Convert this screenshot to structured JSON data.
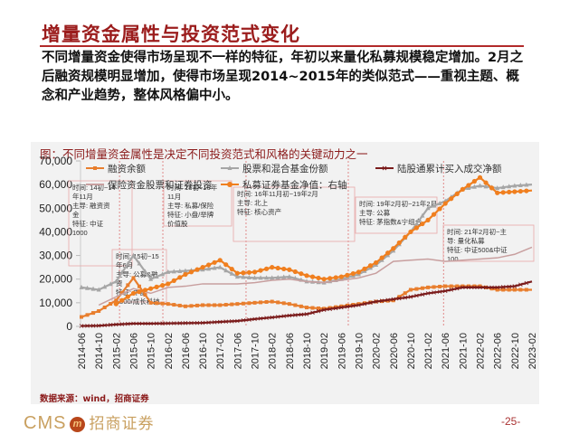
{
  "slide": {
    "title": "增量资金属性与投资范式变化",
    "body": "不同增量资金使得市场呈现不一样的特征，年初以来量化私募规模稳定增加。2月之后融资规模明显增加，使得市场呈现2014~2015年的类似范式——重视主题、概念和产业趋势，整体风格偏中小。",
    "chart_caption": "图：不同增量资金属性是决定不同投资范式和风格的关键动力之一",
    "source": "数据来源：wind，招商证券",
    "logo_text": "CMS",
    "logo_badge": "m",
    "logo_cn": "招商证券",
    "page_number": "-25-"
  },
  "chart_data": {
    "type": "line",
    "title": "不同增量资金属性是决定不同投资范式和风格的关键动力之一",
    "xlabel": "",
    "ylabel": "",
    "ylim": [
      0,
      70000
    ],
    "yticks": [
      "0",
      "10,000",
      "20,000",
      "30,000",
      "40,000",
      "50,000",
      "60,000",
      "70,000"
    ],
    "grid": false,
    "legend_position": "top",
    "categories": [
      "2014-06",
      "2014-10",
      "2015-02",
      "2015-06",
      "2015-10",
      "2016-02",
      "2016-06",
      "2016-10",
      "2017-02",
      "2017-06",
      "2017-10",
      "2018-02",
      "2018-06",
      "2018-10",
      "2019-02",
      "2019-06",
      "2019-10",
      "2020-02",
      "2020-06",
      "2020-10",
      "2021-02",
      "2021-06",
      "2021-10",
      "2022-02",
      "2022-06",
      "2022-10",
      "2023-02"
    ],
    "series": [
      {
        "name": "融资余额",
        "color": "#e87e2e",
        "marker": "square",
        "values": [
          4000,
          6500,
          11000,
          20500,
          10000,
          9500,
          8500,
          9000,
          9000,
          9500,
          10000,
          10500,
          9500,
          8000,
          7500,
          8500,
          9500,
          10500,
          11000,
          15500,
          16500,
          17000,
          17000,
          17000,
          15500,
          15500,
          15500
        ]
      },
      {
        "name": "股票和混合基金份额",
        "color": "#a6a6a6",
        "marker": "triangle",
        "values": [
          16500,
          15500,
          19000,
          30000,
          20000,
          23000,
          23500,
          24000,
          25000,
          21000,
          20500,
          20500,
          21000,
          19000,
          18500,
          20000,
          22000,
          26000,
          32000,
          40000,
          50000,
          53000,
          58000,
          59500,
          58500,
          59500,
          60000
        ]
      },
      {
        "name": "陆股通累计买入成交净额",
        "color": "#7b1c1c",
        "marker": "x",
        "values": [
          200,
          300,
          800,
          1200,
          1200,
          1300,
          1400,
          1500,
          1900,
          2300,
          3100,
          3800,
          4600,
          5200,
          7000,
          8000,
          9000,
          10500,
          11500,
          12500,
          14000,
          15000,
          16500,
          16500,
          16500,
          17000,
          19000
        ]
      },
      {
        "name": "保险资金股票和证券投资",
        "color": "#c89f9f",
        "marker": "none",
        "values": [
          null,
          9000,
          12500,
          16000,
          14000,
          16500,
          17000,
          18000,
          18000,
          18000,
          18500,
          19500,
          20000,
          19000,
          18500,
          19500,
          20500,
          22500,
          27500,
          28000,
          28500,
          27500,
          28000,
          28500,
          29000,
          30500,
          33500
        ]
      },
      {
        "name": "私募证券基金净值：右轴",
        "color": "#f07f1f",
        "marker": "circle",
        "values": [
          null,
          null,
          9500,
          14000,
          16000,
          18000,
          22000,
          25000,
          28000,
          22500,
          23000,
          25000,
          24000,
          21500,
          20000,
          21000,
          23000,
          27000,
          33000,
          40000,
          45000,
          52000,
          58000,
          63000,
          56500,
          57000,
          57500
        ]
      }
    ],
    "annotations": [
      {
        "text": "时间：14初~14年11月 主导：融资资金 特征：中证1000"
      },
      {
        "text": "时间：15初~15年6月 主导：公募&融资 特征：中证1000/成长科技"
      },
      {
        "text": "时间：16初~16年11月 主导：私募/保险 特征：小盘/举牌价值股"
      },
      {
        "text": "时间：16年11月初~19年2月 主导：北上 特征：核心资产"
      },
      {
        "text": "时间：19年2月初~21年2月 主导：公募 特征：茅指数&宁组合"
      },
      {
        "text": "时间：21年2月初~主导：量化私募 特征：中证500&中证100"
      }
    ]
  }
}
